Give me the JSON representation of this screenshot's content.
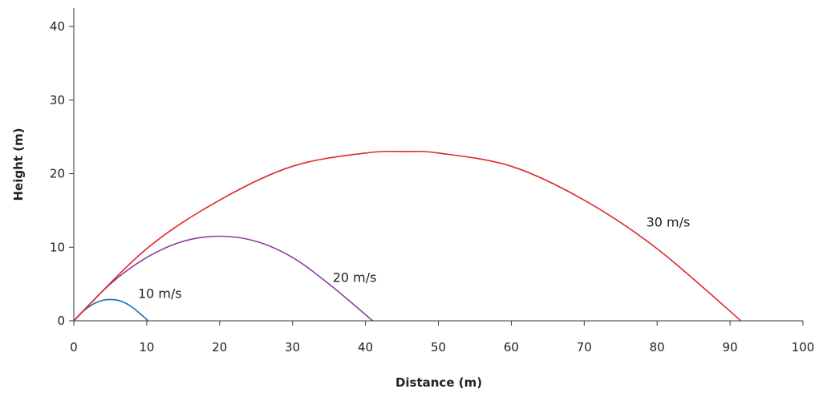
{
  "chart_data": {
    "type": "line",
    "xlabel": "Distance (m)",
    "ylabel": "Height (m)",
    "xlim": [
      0,
      100
    ],
    "ylim": [
      0,
      40
    ],
    "x_ticks": [
      0,
      10,
      20,
      30,
      40,
      50,
      60,
      70,
      80,
      90,
      100
    ],
    "y_ticks": [
      0,
      10,
      20,
      30,
      40
    ],
    "grid": false,
    "series": [
      {
        "name": "10 m/s",
        "color": "#1f6fb3",
        "x": [
          0,
          1,
          2,
          3,
          4,
          5,
          6,
          7,
          8,
          9,
          10.2
        ],
        "y": [
          0,
          1.05,
          1.85,
          2.45,
          2.8,
          2.9,
          2.8,
          2.45,
          1.85,
          1.05,
          0
        ]
      },
      {
        "name": "20 m/s",
        "color": "#8a3d9e",
        "x": [
          0,
          5,
          10,
          15,
          20,
          25,
          30,
          35,
          41
        ],
        "y": [
          0,
          5.0,
          8.6,
          10.8,
          11.5,
          10.8,
          8.6,
          5.0,
          0
        ]
      },
      {
        "name": "30 m/s",
        "color": "#e0262b",
        "x": [
          0,
          10,
          20,
          30,
          40,
          45.5,
          50,
          60,
          70,
          80,
          91.5
        ],
        "y": [
          0,
          9.8,
          16.4,
          21.0,
          22.8,
          23.0,
          22.8,
          21.0,
          16.4,
          9.8,
          0
        ]
      }
    ]
  }
}
